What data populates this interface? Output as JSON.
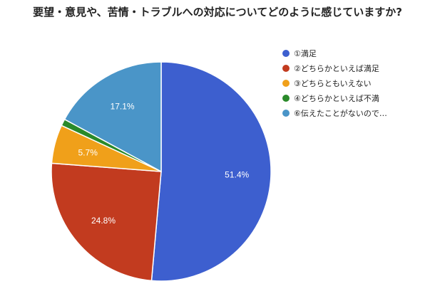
{
  "chart_data": {
    "type": "pie",
    "title": "要望・意見や、苦情・トラブルへの対応についてどのように感じていますか?",
    "slices": [
      {
        "label": "①満足",
        "value": 51.4,
        "display": "51.4%",
        "color": "#3d5fcf"
      },
      {
        "label": "②どちらかといえば満足",
        "value": 24.8,
        "display": "24.8%",
        "color": "#c23b1f"
      },
      {
        "label": "③どちらともいえない",
        "value": 5.7,
        "display": "5.7%",
        "color": "#f0a01a"
      },
      {
        "label": "④どちらかといえば不満",
        "value": 1.0,
        "display": "",
        "color": "#2a8a2a"
      },
      {
        "label": "⑥伝えたことがないので…",
        "value": 17.1,
        "display": "17.1%",
        "color": "#4a95c8"
      }
    ],
    "legend_position": "right"
  }
}
